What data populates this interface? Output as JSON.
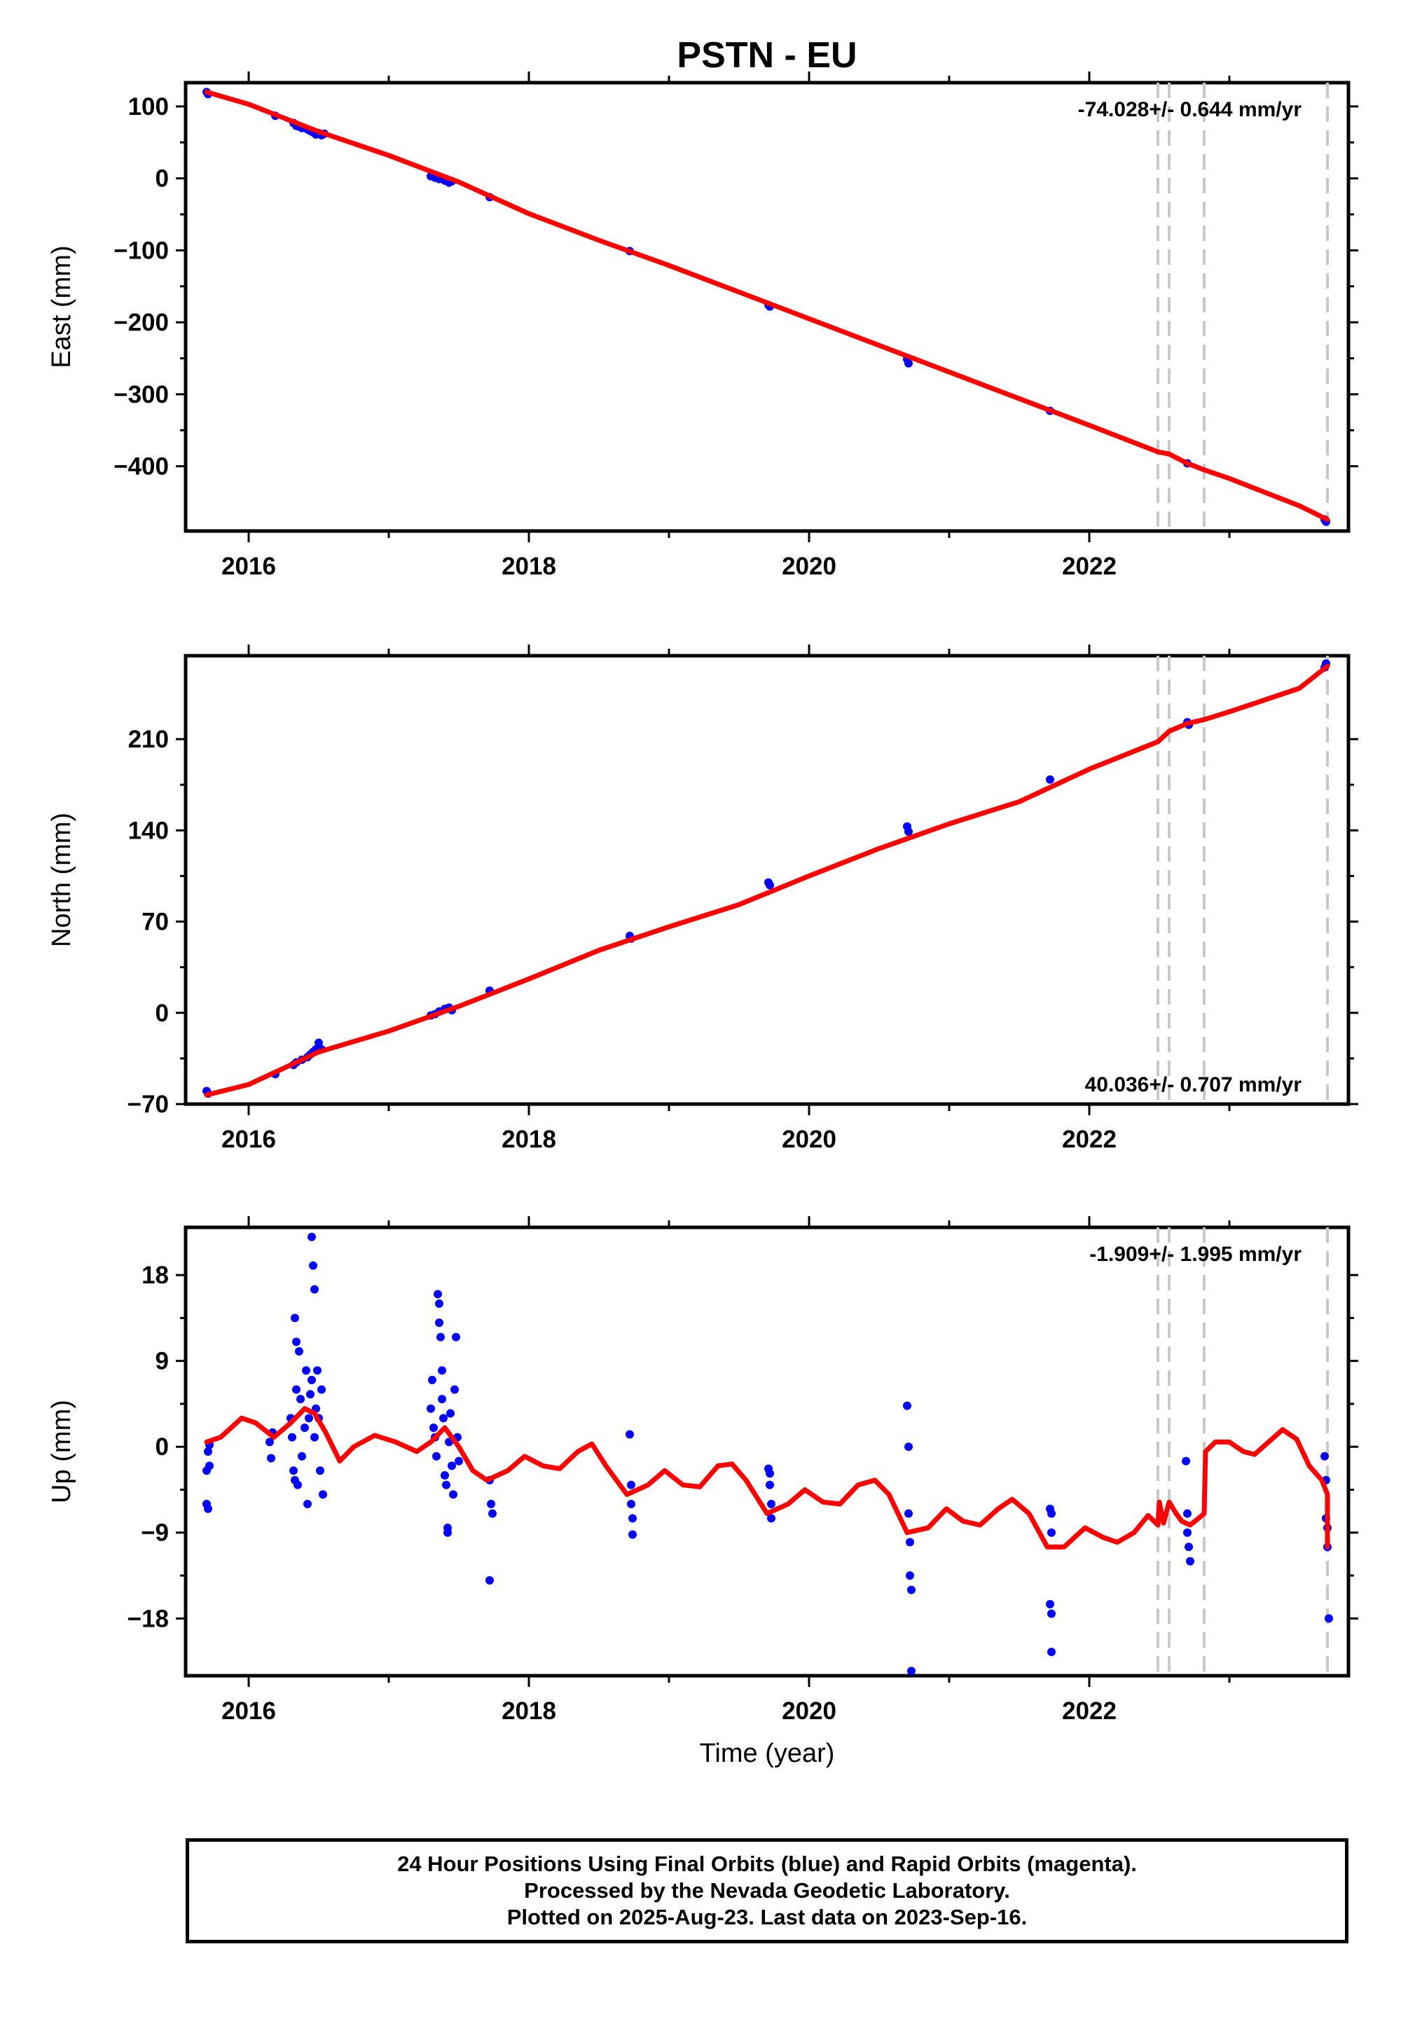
{
  "title": "PSTN - EU",
  "xlabel": "Time (year)",
  "footer": {
    "line1": "24 Hour Positions Using Final Orbits (blue) and Rapid Orbits (magenta).",
    "line2": "Processed by the Nevada Geodetic Laboratory.",
    "line3": "Plotted on 2025-Aug-23. Last data on 2023-Sep-16."
  },
  "chart_data": [
    {
      "type": "scatter",
      "ylabel": "East (mm)",
      "rate_text": "-74.028+/- 0.644 mm/yr",
      "rate_position": "top-right",
      "xlim": [
        2015.55,
        2023.85
      ],
      "ylim": [
        -490,
        133
      ],
      "yticks": [
        100,
        0,
        -100,
        -200,
        -300,
        -400
      ],
      "ytick_labels": [
        "100",
        "0",
        "−100",
        "−200",
        "−300",
        "−400"
      ],
      "xticks": [
        2016,
        2018,
        2020,
        2022
      ],
      "xtick_labels": [
        "2016",
        "2018",
        "2020",
        "2022"
      ],
      "colors": {
        "points": "#0000ff",
        "model": "#ff0000",
        "breaks": "#c8c8c8"
      },
      "breaks": [
        2022.49,
        2022.57,
        2022.82,
        2023.7
      ],
      "points": [
        [
          2015.7,
          120
        ],
        [
          2015.71,
          117
        ],
        [
          2016.19,
          87
        ],
        [
          2016.32,
          77
        ],
        [
          2016.34,
          73
        ],
        [
          2016.36,
          72
        ],
        [
          2016.38,
          70
        ],
        [
          2016.42,
          68
        ],
        [
          2016.44,
          66
        ],
        [
          2016.46,
          64
        ],
        [
          2016.48,
          61
        ],
        [
          2016.5,
          63
        ],
        [
          2016.52,
          60
        ],
        [
          2016.54,
          62
        ],
        [
          2017.3,
          3
        ],
        [
          2017.33,
          1
        ],
        [
          2017.36,
          -1
        ],
        [
          2017.4,
          -3
        ],
        [
          2017.43,
          -6
        ],
        [
          2017.45,
          -4
        ],
        [
          2017.72,
          -26
        ],
        [
          2018.72,
          -101
        ],
        [
          2019.71,
          -176
        ],
        [
          2019.72,
          -178
        ],
        [
          2020.7,
          -251
        ],
        [
          2020.71,
          -257
        ],
        [
          2021.72,
          -323
        ],
        [
          2022.7,
          -396
        ],
        [
          2023.68,
          -474
        ],
        [
          2023.69,
          -477
        ]
      ],
      "model": [
        [
          2015.7,
          120
        ],
        [
          2016.0,
          103
        ],
        [
          2016.5,
          65
        ],
        [
          2017.0,
          32
        ],
        [
          2017.5,
          -5
        ],
        [
          2018.0,
          -49
        ],
        [
          2018.5,
          -86
        ],
        [
          2019.0,
          -121
        ],
        [
          2019.5,
          -158
        ],
        [
          2020.0,
          -195
        ],
        [
          2020.5,
          -232
        ],
        [
          2021.0,
          -269
        ],
        [
          2021.5,
          -306
        ],
        [
          2022.0,
          -343
        ],
        [
          2022.49,
          -380
        ],
        [
          2022.57,
          -383
        ],
        [
          2022.7,
          -396
        ],
        [
          2022.82,
          -405
        ],
        [
          2023.0,
          -417
        ],
        [
          2023.5,
          -455
        ],
        [
          2023.7,
          -474
        ]
      ]
    },
    {
      "type": "scatter",
      "ylabel": "North (mm)",
      "rate_text": "40.036+/- 0.707 mm/yr",
      "rate_position": "bottom-right",
      "xlim": [
        2015.55,
        2023.85
      ],
      "ylim": [
        -70,
        274
      ],
      "yticks": [
        210,
        140,
        70,
        0,
        -70
      ],
      "ytick_labels": [
        "210",
        "140",
        "70",
        "0",
        "−70"
      ],
      "xticks": [
        2016,
        2018,
        2020,
        2022
      ],
      "xtick_labels": [
        "2016",
        "2018",
        "2020",
        "2022"
      ],
      "colors": {
        "points": "#0000ff",
        "model": "#ff0000",
        "breaks": "#c8c8c8"
      },
      "breaks": [
        2022.49,
        2022.57,
        2022.82,
        2023.7
      ],
      "points": [
        [
          2015.7,
          -60
        ],
        [
          2015.71,
          -62
        ],
        [
          2016.19,
          -47
        ],
        [
          2016.32,
          -40
        ],
        [
          2016.34,
          -38
        ],
        [
          2016.38,
          -36
        ],
        [
          2016.42,
          -34
        ],
        [
          2016.44,
          -32
        ],
        [
          2016.46,
          -30
        ],
        [
          2016.48,
          -28
        ],
        [
          2016.5,
          -23
        ],
        [
          2016.52,
          -28
        ],
        [
          2017.3,
          -2
        ],
        [
          2017.33,
          -1
        ],
        [
          2017.36,
          1
        ],
        [
          2017.4,
          3
        ],
        [
          2017.43,
          4
        ],
        [
          2017.45,
          2
        ],
        [
          2017.72,
          17
        ],
        [
          2018.72,
          59
        ],
        [
          2018.73,
          57
        ],
        [
          2019.71,
          100
        ],
        [
          2019.72,
          98
        ],
        [
          2020.7,
          143
        ],
        [
          2020.71,
          139
        ],
        [
          2021.72,
          179
        ],
        [
          2022.7,
          223
        ],
        [
          2022.71,
          221
        ],
        [
          2023.68,
          265
        ],
        [
          2023.69,
          268
        ]
      ],
      "model": [
        [
          2015.7,
          -63
        ],
        [
          2016.0,
          -55
        ],
        [
          2016.5,
          -30
        ],
        [
          2017.0,
          -14
        ],
        [
          2017.5,
          5
        ],
        [
          2018.0,
          26
        ],
        [
          2018.5,
          48
        ],
        [
          2019.0,
          66
        ],
        [
          2019.5,
          83
        ],
        [
          2020.0,
          105
        ],
        [
          2020.5,
          126
        ],
        [
          2021.0,
          145
        ],
        [
          2021.5,
          162
        ],
        [
          2022.0,
          187
        ],
        [
          2022.49,
          208
        ],
        [
          2022.57,
          216
        ],
        [
          2022.7,
          222
        ],
        [
          2022.82,
          225
        ],
        [
          2023.0,
          231
        ],
        [
          2023.5,
          249
        ],
        [
          2023.7,
          266
        ]
      ]
    },
    {
      "type": "scatter",
      "ylabel": "Up (mm)",
      "rate_text": "-1.909+/- 1.995 mm/yr",
      "rate_position": "top-right",
      "xlim": [
        2015.55,
        2023.85
      ],
      "ylim": [
        -24,
        23
      ],
      "yticks": [
        18,
        9,
        0,
        -9,
        -18
      ],
      "ytick_labels": [
        "18",
        "9",
        "0",
        "−9",
        "−18"
      ],
      "xticks": [
        2016,
        2018,
        2020,
        2022
      ],
      "xtick_labels": [
        "2016",
        "2018",
        "2020",
        "2022"
      ],
      "colors": {
        "points": "#0000ff",
        "model": "#ff0000",
        "breaks": "#c8c8c8"
      },
      "breaks": [
        2022.49,
        2022.57,
        2022.82,
        2023.7
      ],
      "points": [
        [
          2015.7,
          -2.5
        ],
        [
          2015.71,
          -0.5
        ],
        [
          2015.7,
          -6
        ],
        [
          2015.71,
          -6.5
        ],
        [
          2015.72,
          -2
        ],
        [
          2015.72,
          0.2
        ],
        [
          2016.15,
          0.5
        ],
        [
          2016.16,
          -1.2
        ],
        [
          2016.17,
          1.5
        ],
        [
          2016.3,
          3
        ],
        [
          2016.31,
          1
        ],
        [
          2016.32,
          -2.5
        ],
        [
          2016.33,
          -3.5
        ],
        [
          2016.34,
          6
        ],
        [
          2016.35,
          -4
        ],
        [
          2016.33,
          13.5
        ],
        [
          2016.34,
          11
        ],
        [
          2016.36,
          10
        ],
        [
          2016.37,
          5
        ],
        [
          2016.38,
          -1
        ],
        [
          2016.4,
          2
        ],
        [
          2016.41,
          8
        ],
        [
          2016.42,
          -6
        ],
        [
          2016.43,
          3
        ],
        [
          2016.44,
          5.5
        ],
        [
          2016.45,
          7
        ],
        [
          2016.45,
          22
        ],
        [
          2016.46,
          19
        ],
        [
          2016.47,
          16.5
        ],
        [
          2016.47,
          1
        ],
        [
          2016.48,
          4
        ],
        [
          2016.49,
          8
        ],
        [
          2016.5,
          3
        ],
        [
          2016.51,
          -2.5
        ],
        [
          2016.52,
          6
        ],
        [
          2016.53,
          -5
        ],
        [
          2017.3,
          4
        ],
        [
          2017.31,
          7
        ],
        [
          2017.32,
          2
        ],
        [
          2017.33,
          1
        ],
        [
          2017.34,
          -1
        ],
        [
          2017.35,
          16
        ],
        [
          2017.36,
          15
        ],
        [
          2017.36,
          13
        ],
        [
          2017.37,
          11.5
        ],
        [
          2017.38,
          8
        ],
        [
          2017.38,
          5
        ],
        [
          2017.39,
          3
        ],
        [
          2017.4,
          -3
        ],
        [
          2017.41,
          -4
        ],
        [
          2017.42,
          -9
        ],
        [
          2017.42,
          -8.5
        ],
        [
          2017.43,
          0.5
        ],
        [
          2017.44,
          3.5
        ],
        [
          2017.45,
          -2
        ],
        [
          2017.46,
          -5
        ],
        [
          2017.47,
          6
        ],
        [
          2017.48,
          11.5
        ],
        [
          2017.49,
          1
        ],
        [
          2017.5,
          -1.5
        ],
        [
          2017.72,
          -3.5
        ],
        [
          2017.73,
          -6
        ],
        [
          2017.74,
          -7
        ],
        [
          2017.72,
          -14
        ],
        [
          2018.72,
          1.3
        ],
        [
          2018.73,
          -4
        ],
        [
          2018.73,
          -6
        ],
        [
          2018.74,
          -7.5
        ],
        [
          2018.74,
          -9.2
        ],
        [
          2019.71,
          -2.3
        ],
        [
          2019.72,
          -2.8
        ],
        [
          2019.72,
          -4
        ],
        [
          2019.73,
          -6
        ],
        [
          2019.73,
          -7.5
        ],
        [
          2020.7,
          4.3
        ],
        [
          2020.71,
          0
        ],
        [
          2020.71,
          -7
        ],
        [
          2020.72,
          -10
        ],
        [
          2020.72,
          -13.5
        ],
        [
          2020.73,
          -15
        ],
        [
          2020.73,
          -23.5
        ],
        [
          2021.72,
          -6.5
        ],
        [
          2021.73,
          -7
        ],
        [
          2021.73,
          -9
        ],
        [
          2021.72,
          -16.5
        ],
        [
          2021.73,
          -17.5
        ],
        [
          2021.73,
          -21.5
        ],
        [
          2022.69,
          -1.5
        ],
        [
          2022.7,
          -7
        ],
        [
          2022.7,
          -9
        ],
        [
          2022.71,
          -10.5
        ],
        [
          2022.72,
          -12
        ],
        [
          2023.68,
          -1
        ],
        [
          2023.69,
          -3.5
        ],
        [
          2023.69,
          -7.5
        ],
        [
          2023.7,
          -8.5
        ],
        [
          2023.7,
          -10.5
        ],
        [
          2023.71,
          -18
        ]
      ],
      "model": [
        [
          2015.7,
          0.5
        ],
        [
          2015.8,
          1.0
        ],
        [
          2015.95,
          3.0
        ],
        [
          2016.05,
          2.5
        ],
        [
          2016.18,
          1.0
        ],
        [
          2016.3,
          2.5
        ],
        [
          2016.4,
          4.0
        ],
        [
          2016.47,
          3.5
        ],
        [
          2016.55,
          1.5
        ],
        [
          2016.65,
          -1.5
        ],
        [
          2016.75,
          0.0
        ],
        [
          2016.9,
          1.2
        ],
        [
          2017.05,
          0.5
        ],
        [
          2017.2,
          -0.5
        ],
        [
          2017.3,
          0.5
        ],
        [
          2017.4,
          2.0
        ],
        [
          2017.5,
          0.0
        ],
        [
          2017.6,
          -2.5
        ],
        [
          2017.7,
          -3.5
        ],
        [
          2017.85,
          -2.5
        ],
        [
          2017.97,
          -1.0
        ],
        [
          2018.1,
          -2.0
        ],
        [
          2018.22,
          -2.3
        ],
        [
          2018.35,
          -0.5
        ],
        [
          2018.45,
          0.3
        ],
        [
          2018.55,
          -2.0
        ],
        [
          2018.7,
          -5.0
        ],
        [
          2018.85,
          -4.0
        ],
        [
          2018.97,
          -2.5
        ],
        [
          2019.1,
          -4.0
        ],
        [
          2019.22,
          -4.2
        ],
        [
          2019.35,
          -2.0
        ],
        [
          2019.45,
          -1.8
        ],
        [
          2019.55,
          -3.5
        ],
        [
          2019.7,
          -7.0
        ],
        [
          2019.85,
          -6.0
        ],
        [
          2019.97,
          -4.5
        ],
        [
          2020.1,
          -5.8
        ],
        [
          2020.22,
          -6.0
        ],
        [
          2020.35,
          -4.0
        ],
        [
          2020.47,
          -3.5
        ],
        [
          2020.57,
          -5.0
        ],
        [
          2020.7,
          -9.0
        ],
        [
          2020.85,
          -8.5
        ],
        [
          2020.98,
          -6.5
        ],
        [
          2021.1,
          -7.8
        ],
        [
          2021.22,
          -8.2
        ],
        [
          2021.35,
          -6.5
        ],
        [
          2021.45,
          -5.5
        ],
        [
          2021.57,
          -7.0
        ],
        [
          2021.7,
          -10.5
        ],
        [
          2021.82,
          -10.5
        ],
        [
          2021.97,
          -8.5
        ],
        [
          2022.1,
          -9.5
        ],
        [
          2022.2,
          -10.0
        ],
        [
          2022.32,
          -9.0
        ],
        [
          2022.42,
          -7.2
        ],
        [
          2022.49,
          -8.2
        ],
        [
          2022.5,
          -5.8
        ],
        [
          2022.53,
          -8.0
        ],
        [
          2022.57,
          -5.8
        ],
        [
          2022.62,
          -7.0
        ],
        [
          2022.66,
          -7.8
        ],
        [
          2022.72,
          -8.2
        ],
        [
          2022.78,
          -7.5
        ],
        [
          2022.82,
          -7.0
        ],
        [
          2022.83,
          -0.5
        ],
        [
          2022.9,
          0.5
        ],
        [
          2023.0,
          0.5
        ],
        [
          2023.1,
          -0.5
        ],
        [
          2023.18,
          -0.8
        ],
        [
          2023.28,
          0.5
        ],
        [
          2023.38,
          1.8
        ],
        [
          2023.48,
          0.8
        ],
        [
          2023.57,
          -2.0
        ],
        [
          2023.66,
          -3.5
        ],
        [
          2023.7,
          -5.0
        ],
        [
          2023.7,
          -10.5
        ]
      ]
    }
  ]
}
